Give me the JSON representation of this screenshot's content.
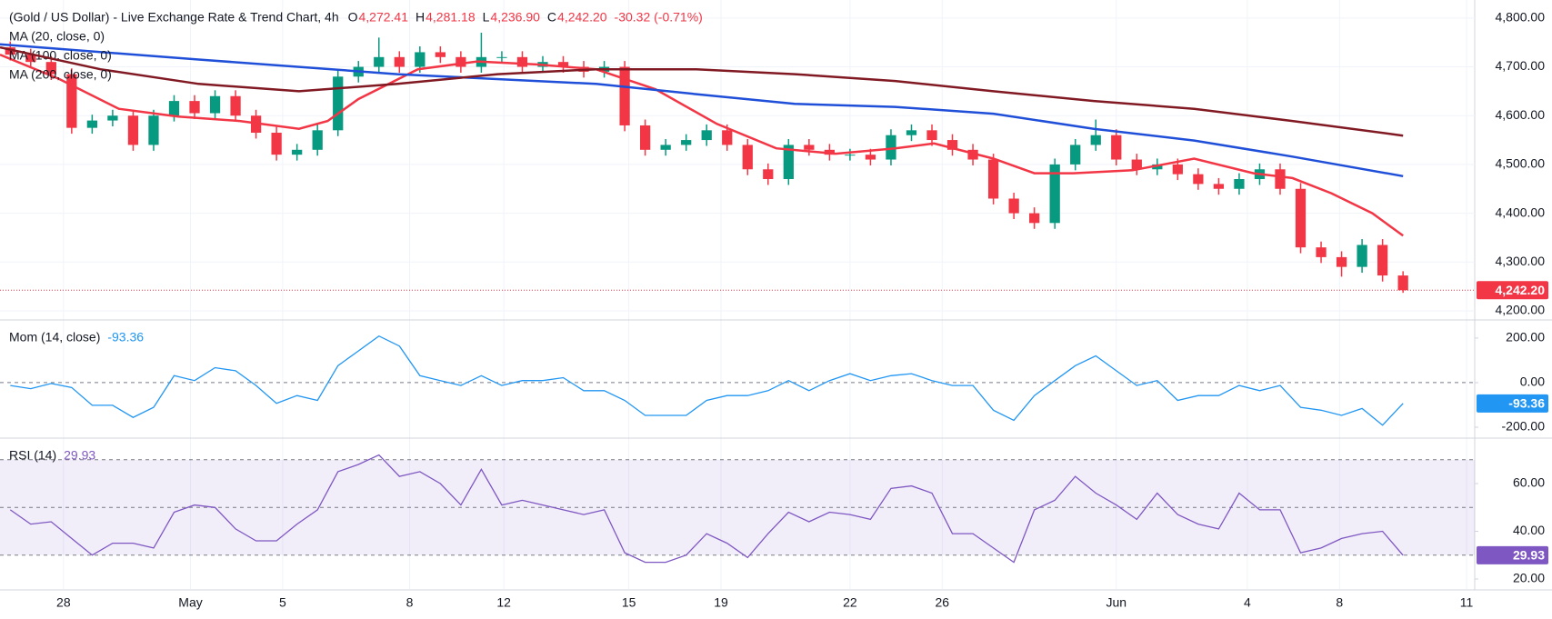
{
  "chart_data": {
    "type": "candlestick",
    "title": "(Gold / US Dollar) - Live Exchange Rate & Trend Chart, 4h",
    "ohlc_legend": [
      {
        "key": "O",
        "value": "4,272.41"
      },
      {
        "key": "H",
        "value": "4,281.18"
      },
      {
        "key": "L",
        "value": "4,236.90"
      },
      {
        "key": "C",
        "value": "4,242.20"
      }
    ],
    "change": "-30.32 (-0.71%)",
    "up_color": "#089981",
    "down_color": "#f23645",
    "x": [
      0.5,
      1.5,
      2.5,
      3.5,
      4.5,
      5.5,
      6.5,
      7.5,
      8.5,
      9.5,
      10.5,
      11.5,
      12.5,
      13.5,
      14.5,
      15.5,
      16.5,
      17.5,
      18.5,
      19.5,
      20.5,
      21.5,
      22.5,
      23.5,
      24.5,
      25.5,
      26.5,
      27.5,
      28.5,
      29.5,
      30.5,
      31.5,
      32.5,
      33.5,
      34.5,
      35.5,
      36.5,
      37.5,
      38.5,
      39.5,
      40.5,
      41.5,
      42.5,
      43.5,
      44.5,
      45.5,
      46.5,
      47.5,
      48.5,
      49.5,
      50.5,
      51.5,
      52.5,
      53.5,
      54.5,
      55.5,
      56.5,
      57.5,
      58.5,
      59.5,
      60.5,
      61.5,
      62.5,
      63.5,
      64.5,
      65.5,
      66.5,
      67.5,
      68.5
    ],
    "open": [
      4740,
      4725,
      4710,
      4685,
      4575,
      4590,
      4600,
      4540,
      4600,
      4630,
      4605,
      4640,
      4600,
      4565,
      4520,
      4530,
      4570,
      4680,
      4700,
      4720,
      4700,
      4730,
      4720,
      4700,
      4720,
      4720,
      4700,
      4710,
      4700,
      4690,
      4700,
      4580,
      4530,
      4540,
      4550,
      4570,
      4540,
      4490,
      4470,
      4540,
      4530,
      4520,
      4520,
      4510,
      4560,
      4570,
      4550,
      4530,
      4510,
      4430,
      4400,
      4380,
      4500,
      4540,
      4560,
      4510,
      4490,
      4500,
      4480,
      4460,
      4450,
      4470,
      4490,
      4450,
      4330,
      4310,
      4290,
      4335,
      4272.41
    ],
    "high": [
      4752,
      4737,
      4722,
      4697,
      4602,
      4612,
      4612,
      4612,
      4642,
      4642,
      4652,
      4652,
      4612,
      4577,
      4542,
      4582,
      4692,
      4712,
      4760,
      4732,
      4742,
      4742,
      4732,
      4770,
      4732,
      4732,
      4722,
      4722,
      4712,
      4712,
      4712,
      4592,
      4552,
      4562,
      4582,
      4582,
      4552,
      4502,
      4552,
      4552,
      4542,
      4532,
      4532,
      4572,
      4582,
      4582,
      4562,
      4542,
      4522,
      4442,
      4412,
      4512,
      4552,
      4592,
      4572,
      4522,
      4512,
      4512,
      4492,
      4472,
      4482,
      4502,
      4502,
      4462,
      4342,
      4322,
      4347,
      4347,
      4281.18
    ],
    "low": [
      4713,
      4698,
      4673,
      4563,
      4563,
      4578,
      4528,
      4528,
      4588,
      4593,
      4593,
      4588,
      4553,
      4508,
      4508,
      4518,
      4558,
      4668,
      4688,
      4688,
      4688,
      4708,
      4688,
      4688,
      4708,
      4688,
      4688,
      4688,
      4678,
      4678,
      4568,
      4518,
      4518,
      4528,
      4538,
      4528,
      4478,
      4458,
      4458,
      4518,
      4508,
      4508,
      4498,
      4498,
      4548,
      4538,
      4518,
      4498,
      4418,
      4388,
      4368,
      4368,
      4488,
      4528,
      4498,
      4478,
      4478,
      4468,
      4448,
      4438,
      4438,
      4458,
      4438,
      4318,
      4298,
      4270,
      4278,
      4260,
      4236.9
    ],
    "close": [
      4725,
      4710,
      4685,
      4575,
      4590,
      4600,
      4540,
      4600,
      4630,
      4605,
      4640,
      4600,
      4565,
      4520,
      4530,
      4570,
      4680,
      4700,
      4720,
      4700,
      4730,
      4720,
      4700,
      4720,
      4720,
      4700,
      4710,
      4700,
      4690,
      4700,
      4580,
      4530,
      4540,
      4550,
      4570,
      4540,
      4490,
      4470,
      4540,
      4530,
      4520,
      4520,
      4510,
      4560,
      4570,
      4550,
      4530,
      4510,
      4430,
      4400,
      4380,
      4500,
      4540,
      4560,
      4510,
      4490,
      4500,
      4480,
      4460,
      4450,
      4470,
      4490,
      4450,
      4330,
      4310,
      4290,
      4335,
      4272.41,
      4242.2
    ],
    "close_label": "4,242.20",
    "overlays": [
      {
        "name": "MA (20, close, 0)",
        "color": "#f23645",
        "x": [
          0,
          2.9,
          5.8,
          8.7,
          11.7,
          14.6,
          16,
          17.5,
          20.4,
          23.3,
          26.2,
          29.1,
          32,
          35,
          37.9,
          40.8,
          43.7,
          45.6,
          48.5,
          50.5,
          52.4,
          55.3,
          58.3,
          61.2,
          63.1,
          65,
          67,
          68.5
        ],
        "values": [
          4725,
          4675,
          4614,
          4598,
          4589,
          4573,
          4589,
          4634,
          4695,
          4711,
          4705,
          4695,
          4654,
          4583,
          4533,
          4522,
          4533,
          4543,
          4512,
          4482,
          4482,
          4488,
          4512,
          4482,
          4472,
          4441,
          4400,
          4354
        ]
      },
      {
        "name": "MA (100, close, 0)",
        "color": "#1f4fd8",
        "x": [
          0,
          9.7,
          19.4,
          29.1,
          34,
          38.8,
          43.7,
          48.5,
          53.4,
          58.3,
          63.1,
          68.5
        ],
        "values": [
          4746,
          4715,
          4685,
          4665,
          4644,
          4624,
          4618,
          4604,
          4573,
          4549,
          4516,
          4476
        ]
      },
      {
        "name": "MA (200, close, 0)",
        "color": "#801922",
        "x": [
          0,
          4.9,
          9.7,
          14.6,
          19.4,
          24.3,
          29.1,
          34,
          38.8,
          43.7,
          48.5,
          53.4,
          58.3,
          63.1,
          68.5
        ],
        "values": [
          4740,
          4695,
          4665,
          4650,
          4665,
          4685,
          4695,
          4695,
          4685,
          4671,
          4650,
          4630,
          4614,
          4589,
          4559
        ]
      }
    ],
    "xlim": [
      0,
      72
    ],
    "xticks": [
      {
        "value": 3.1,
        "label": "28"
      },
      {
        "value": 9.3,
        "label": "May"
      },
      {
        "value": 13.8,
        "label": "5"
      },
      {
        "value": 20,
        "label": "8"
      },
      {
        "value": 24.6,
        "label": "12"
      },
      {
        "value": 30.7,
        "label": "15"
      },
      {
        "value": 35.2,
        "label": "19"
      },
      {
        "value": 41.5,
        "label": "22"
      },
      {
        "value": 46,
        "label": "26"
      },
      {
        "value": 54.5,
        "label": "Jun"
      },
      {
        "value": 60.9,
        "label": "4"
      },
      {
        "value": 65.4,
        "label": "8"
      },
      {
        "value": 71.6,
        "label": "11"
      }
    ],
    "ylim": [
      4185,
      4837
    ],
    "yticks": [
      {
        "value": 4200,
        "label": "4,200.00"
      },
      {
        "value": 4300,
        "label": "4,300.00"
      },
      {
        "value": 4400,
        "label": "4,400.00"
      },
      {
        "value": 4500,
        "label": "4,500.00"
      },
      {
        "value": 4600,
        "label": "4,600.00"
      },
      {
        "value": 4700,
        "label": "4,700.00"
      },
      {
        "value": 4800,
        "label": "4,800.00"
      }
    ],
    "indicators": [
      {
        "type": "line",
        "name": "Mom (14, close)",
        "color": "#2196f3",
        "value_label": "-93.36",
        "values": [
          -13,
          -27,
          -4,
          -22,
          -102,
          -102,
          -156,
          -111,
          31,
          9,
          67,
          53,
          -13,
          -93,
          -58,
          -80,
          76,
          142,
          209,
          164,
          31,
          9,
          -13,
          31,
          -13,
          9,
          9,
          22,
          -36,
          -36,
          -80,
          -147,
          -147,
          -147,
          -80,
          -58,
          -58,
          -36,
          9,
          -36,
          9,
          40,
          9,
          31,
          40,
          9,
          -13,
          -13,
          -124,
          -169,
          -58,
          9,
          76,
          120,
          53,
          -13,
          9,
          -80,
          -58,
          -58,
          -13,
          -36,
          -13,
          -111,
          -124,
          -147,
          -116,
          -191,
          -93.36
        ],
        "ylim": [
          -245,
          273
        ],
        "yticks": [
          {
            "value": -200,
            "label": "-200.00"
          },
          {
            "value": 0,
            "label": "0.00"
          },
          {
            "value": 200,
            "label": "200.00"
          }
        ],
        "levels": [
          0
        ]
      },
      {
        "type": "line",
        "name": "RSI (14)",
        "color": "#7e57c2",
        "value_label": "29.93",
        "values": [
          49,
          43,
          44,
          37,
          30,
          35,
          35,
          33,
          48,
          51,
          50,
          41,
          36,
          36,
          43,
          49,
          65,
          68,
          72,
          63,
          65,
          60,
          51,
          66,
          51,
          53,
          51,
          49,
          47,
          49,
          31,
          27,
          27,
          30,
          39,
          35,
          29,
          39,
          48,
          44,
          48,
          47,
          45,
          58,
          59,
          56,
          39,
          39,
          33,
          27,
          49,
          53,
          63,
          56,
          51,
          45,
          56,
          47,
          43,
          41,
          56,
          49,
          49,
          31,
          33,
          37,
          39,
          40,
          29.93
        ],
        "ylim": [
          15.8,
          78.3
        ],
        "yticks": [
          {
            "value": 20,
            "label": "20.00"
          },
          {
            "value": 40,
            "label": "40.00"
          },
          {
            "value": 60,
            "label": "60.00"
          }
        ],
        "band": [
          30,
          70
        ],
        "levels": [
          70,
          50,
          30
        ]
      }
    ]
  }
}
